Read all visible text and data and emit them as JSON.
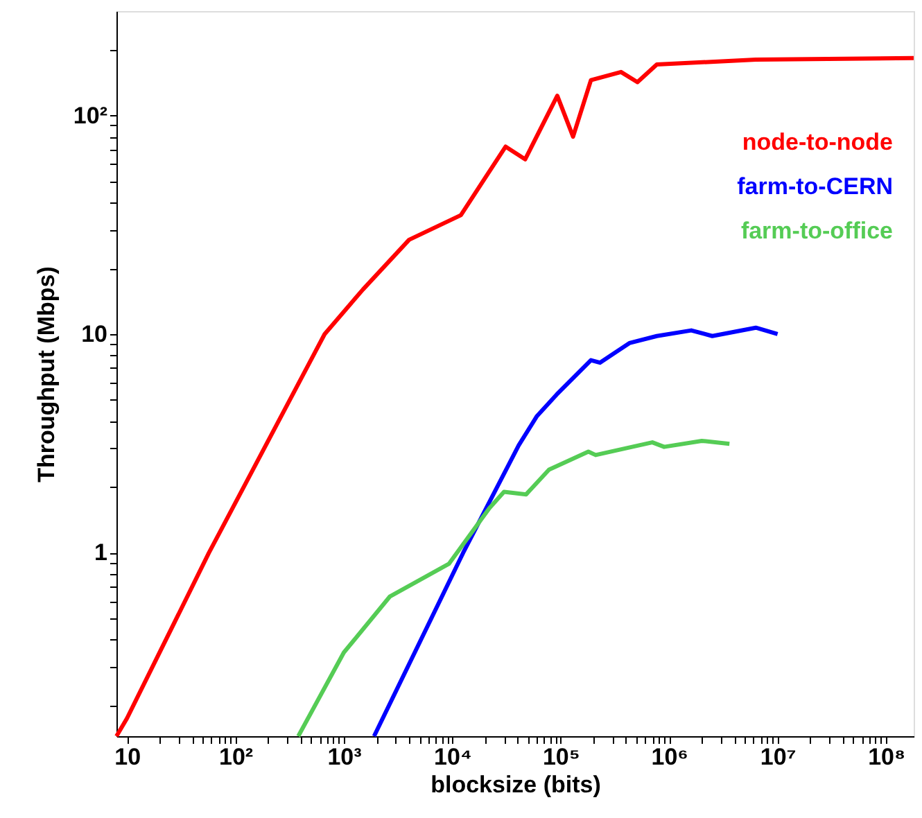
{
  "chart_data": {
    "type": "line",
    "xlabel": "blocksize (bits)",
    "ylabel": "Throughput (Mbps)",
    "log": "xy",
    "grid": false,
    "legend": "top right",
    "line_style": "solid",
    "marker": "none",
    "xlim": [
      8,
      180000000
    ],
    "ylim": [
      0.145,
      300
    ],
    "xticks": [
      {
        "value": 10,
        "label": "10"
      },
      {
        "value": 20,
        "label": null
      },
      {
        "value": 30,
        "label": null
      },
      {
        "value": 40,
        "label": null
      },
      {
        "value": 50,
        "label": null
      },
      {
        "value": 60,
        "label": null
      },
      {
        "value": 70,
        "label": null
      },
      {
        "value": 80,
        "label": null
      },
      {
        "value": 90,
        "label": null
      },
      {
        "value": 100,
        "label": "10²"
      },
      {
        "value": 200,
        "label": null
      },
      {
        "value": 300,
        "label": null
      },
      {
        "value": 400,
        "label": null
      },
      {
        "value": 500,
        "label": null
      },
      {
        "value": 600,
        "label": null
      },
      {
        "value": 700,
        "label": null
      },
      {
        "value": 800,
        "label": null
      },
      {
        "value": 900,
        "label": null
      },
      {
        "value": 1000,
        "label": "10³"
      },
      {
        "value": 2000,
        "label": null
      },
      {
        "value": 3000,
        "label": null
      },
      {
        "value": 4000,
        "label": null
      },
      {
        "value": 5000,
        "label": null
      },
      {
        "value": 6000,
        "label": null
      },
      {
        "value": 7000,
        "label": null
      },
      {
        "value": 8000,
        "label": null
      },
      {
        "value": 9000,
        "label": null
      },
      {
        "value": 10000,
        "label": "10⁴"
      },
      {
        "value": 20000,
        "label": null
      },
      {
        "value": 30000,
        "label": null
      },
      {
        "value": 40000,
        "label": null
      },
      {
        "value": 50000,
        "label": null
      },
      {
        "value": 60000,
        "label": null
      },
      {
        "value": 70000,
        "label": null
      },
      {
        "value": 80000,
        "label": null
      },
      {
        "value": 90000,
        "label": null
      },
      {
        "value": 100000,
        "label": "10⁵"
      },
      {
        "value": 200000,
        "label": null
      },
      {
        "value": 300000,
        "label": null
      },
      {
        "value": 400000,
        "label": null
      },
      {
        "value": 500000,
        "label": null
      },
      {
        "value": 600000,
        "label": null
      },
      {
        "value": 700000,
        "label": null
      },
      {
        "value": 800000,
        "label": null
      },
      {
        "value": 900000,
        "label": null
      },
      {
        "value": 1000000,
        "label": "10⁶"
      },
      {
        "value": 2000000,
        "label": null
      },
      {
        "value": 3000000,
        "label": null
      },
      {
        "value": 4000000,
        "label": null
      },
      {
        "value": 5000000,
        "label": null
      },
      {
        "value": 6000000,
        "label": null
      },
      {
        "value": 7000000,
        "label": null
      },
      {
        "value": 8000000,
        "label": null
      },
      {
        "value": 9000000,
        "label": null
      },
      {
        "value": 10000000,
        "label": "10⁷"
      },
      {
        "value": 20000000,
        "label": null
      },
      {
        "value": 30000000,
        "label": null
      },
      {
        "value": 40000000,
        "label": null
      },
      {
        "value": 50000000,
        "label": null
      },
      {
        "value": 60000000,
        "label": null
      },
      {
        "value": 70000000,
        "label": null
      },
      {
        "value": 80000000,
        "label": null
      },
      {
        "value": 90000000,
        "label": null
      },
      {
        "value": 100000000,
        "label": "10⁸"
      }
    ],
    "yticks": [
      {
        "value": 0.2,
        "label": null
      },
      {
        "value": 0.3,
        "label": null
      },
      {
        "value": 0.4,
        "label": null
      },
      {
        "value": 0.5,
        "label": null
      },
      {
        "value": 0.6,
        "label": null
      },
      {
        "value": 0.7,
        "label": null
      },
      {
        "value": 0.8,
        "label": null
      },
      {
        "value": 0.9,
        "label": null
      },
      {
        "value": 1,
        "label": "1"
      },
      {
        "value": 2,
        "label": null
      },
      {
        "value": 3,
        "label": null
      },
      {
        "value": 4,
        "label": null
      },
      {
        "value": 5,
        "label": null
      },
      {
        "value": 6,
        "label": null
      },
      {
        "value": 7,
        "label": null
      },
      {
        "value": 8,
        "label": null
      },
      {
        "value": 9,
        "label": null
      },
      {
        "value": 10,
        "label": "10"
      },
      {
        "value": 20,
        "label": null
      },
      {
        "value": 30,
        "label": null
      },
      {
        "value": 40,
        "label": null
      },
      {
        "value": 50,
        "label": null
      },
      {
        "value": 60,
        "label": null
      },
      {
        "value": 70,
        "label": null
      },
      {
        "value": 80,
        "label": null
      },
      {
        "value": 90,
        "label": null
      },
      {
        "value": 100,
        "label": "10²"
      },
      {
        "value": 200,
        "label": null
      }
    ],
    "series": [
      {
        "name": "node-to-node",
        "color": "#ff0000",
        "x": [
          8,
          10,
          57,
          665,
          1500,
          4000,
          12000,
          31000,
          47000,
          93000,
          130000,
          190000,
          360000,
          510000,
          770000,
          6300000,
          180000000
        ],
        "values": [
          0.145,
          0.175,
          1,
          10,
          16,
          27,
          35,
          72,
          63,
          123,
          80,
          145,
          158,
          142,
          171,
          180,
          183
        ]
      },
      {
        "name": "farm-to-CERN",
        "color": "#0000ff",
        "x": [
          1900,
          12600,
          41000,
          60000,
          92000,
          190000,
          230000,
          430000,
          770000,
          1600000,
          2500000,
          6300000,
          10000000
        ],
        "values": [
          0.145,
          1,
          3.1,
          4.2,
          5.3,
          7.6,
          7.4,
          9.1,
          9.8,
          10.4,
          9.8,
          10.7,
          10
        ]
      },
      {
        "name": "farm-to-office",
        "color": "#55cc55",
        "x": [
          380,
          1000,
          2650,
          9300,
          22000,
          30000,
          48000,
          78000,
          180000,
          210000,
          700000,
          900000,
          2000000,
          3600000
        ],
        "values": [
          0.145,
          0.35,
          0.63,
          0.89,
          1.6,
          1.9,
          1.85,
          2.4,
          2.9,
          2.8,
          3.2,
          3.05,
          3.25,
          3.15
        ]
      }
    ]
  }
}
